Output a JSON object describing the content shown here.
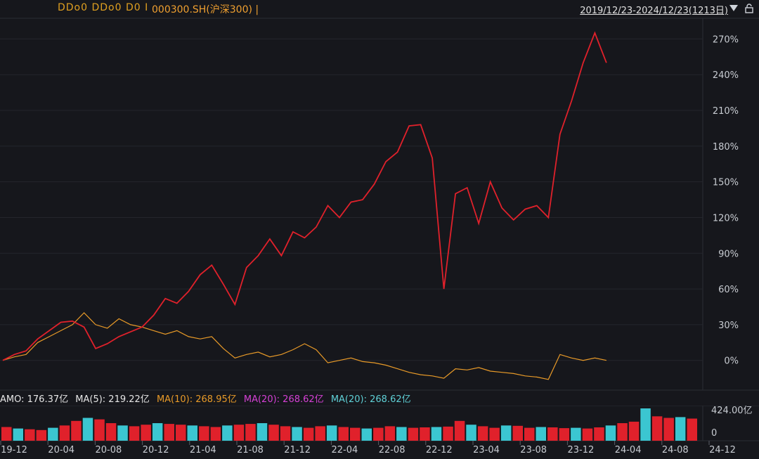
{
  "header": {
    "title_masked": "DDo0 DDo0 D0 I",
    "title_code": "000300.SH(沪深300) |",
    "date_range": "2019/12/23-2024/12/23(1213日)"
  },
  "volume_indicators": {
    "amo": "AMO: 176.37亿",
    "ma5": "MA(5): 219.22亿",
    "ma10": "MA(10): 268.95亿",
    "ma20a": "MA(20): 268.62亿",
    "ma20b": "MA(20): 268.62亿"
  },
  "colors": {
    "background": "#16171c",
    "up": "#e0212b",
    "down": "#3bc6d1",
    "index_line": "#e89a28",
    "grid": "#2a2c33",
    "axis_text": "#c8ccd2"
  },
  "chart_data": [
    {
      "type": "line",
      "subtype": "candlestick-percent",
      "ylabels": [
        "270%",
        "240%",
        "210%",
        "180%",
        "150%",
        "120%",
        "90%",
        "60%",
        "30%",
        "0%"
      ],
      "yticks": [
        270,
        240,
        210,
        180,
        150,
        120,
        90,
        60,
        30,
        0
      ],
      "ylim": [
        -22,
        285
      ],
      "xlim": [
        0,
        60
      ],
      "series": [
        {
          "name": "",
          "color": "#e0212b",
          "points": [
            [
              0,
              0
            ],
            [
              1,
              5
            ],
            [
              2,
              8
            ],
            [
              3,
              18
            ],
            [
              4,
              25
            ],
            [
              5,
              32
            ],
            [
              6,
              33
            ],
            [
              7,
              28
            ],
            [
              8,
              10
            ],
            [
              9,
              14
            ],
            [
              10,
              20
            ],
            [
              11,
              24
            ],
            [
              12,
              28
            ],
            [
              13,
              38
            ],
            [
              14,
              52
            ],
            [
              15,
              48
            ],
            [
              16,
              58
            ],
            [
              17,
              72
            ],
            [
              18,
              80
            ],
            [
              19,
              64
            ],
            [
              20,
              47
            ],
            [
              21,
              78
            ],
            [
              22,
              88
            ],
            [
              23,
              102
            ],
            [
              24,
              88
            ],
            [
              25,
              108
            ],
            [
              26,
              103
            ],
            [
              27,
              112
            ],
            [
              28,
              130
            ],
            [
              29,
              120
            ],
            [
              30,
              133
            ],
            [
              31,
              135
            ],
            [
              32,
              148
            ],
            [
              33,
              167
            ],
            [
              34,
              175
            ],
            [
              35,
              197
            ],
            [
              36,
              198
            ],
            [
              37,
              170
            ],
            [
              38,
              60
            ],
            [
              39,
              140
            ],
            [
              40,
              145
            ],
            [
              41,
              115
            ],
            [
              42,
              150
            ],
            [
              43,
              128
            ],
            [
              44,
              118
            ],
            [
              45,
              127
            ],
            [
              46,
              130
            ],
            [
              47,
              120
            ],
            [
              48,
              190
            ],
            [
              49,
              218
            ],
            [
              50,
              250
            ],
            [
              51,
              275
            ],
            [
              52,
              250
            ]
          ]
        },
        {
          "name": "000300.SH(沪深300)",
          "color": "#e89a28",
          "points": [
            [
              0,
              0
            ],
            [
              1,
              3
            ],
            [
              2,
              5
            ],
            [
              3,
              15
            ],
            [
              4,
              20
            ],
            [
              5,
              25
            ],
            [
              6,
              30
            ],
            [
              7,
              40
            ],
            [
              8,
              30
            ],
            [
              9,
              27
            ],
            [
              10,
              35
            ],
            [
              11,
              30
            ],
            [
              12,
              28
            ],
            [
              13,
              25
            ],
            [
              14,
              22
            ],
            [
              15,
              25
            ],
            [
              16,
              20
            ],
            [
              17,
              18
            ],
            [
              18,
              20
            ],
            [
              19,
              10
            ],
            [
              20,
              2
            ],
            [
              21,
              5
            ],
            [
              22,
              7
            ],
            [
              23,
              3
            ],
            [
              24,
              5
            ],
            [
              25,
              9
            ],
            [
              26,
              14
            ],
            [
              27,
              9
            ],
            [
              28,
              -2
            ],
            [
              29,
              0
            ],
            [
              30,
              2
            ],
            [
              31,
              -1
            ],
            [
              32,
              -2
            ],
            [
              33,
              -4
            ],
            [
              34,
              -7
            ],
            [
              35,
              -10
            ],
            [
              36,
              -12
            ],
            [
              37,
              -13
            ],
            [
              38,
              -15
            ],
            [
              39,
              -7
            ],
            [
              40,
              -8
            ],
            [
              41,
              -6
            ],
            [
              42,
              -9
            ],
            [
              43,
              -10
            ],
            [
              44,
              -11
            ],
            [
              45,
              -13
            ],
            [
              46,
              -14
            ],
            [
              47,
              -16
            ],
            [
              48,
              5
            ],
            [
              49,
              2
            ],
            [
              50,
              0
            ],
            [
              51,
              2
            ],
            [
              52,
              0
            ]
          ]
        }
      ]
    },
    {
      "type": "bar",
      "subtype": "volume",
      "ylabels": [
        "424.00亿",
        "0"
      ],
      "ylim": [
        0,
        424
      ],
      "values": [
        180,
        160,
        150,
        140,
        170,
        200,
        260,
        300,
        280,
        230,
        200,
        190,
        210,
        230,
        220,
        210,
        200,
        190,
        180,
        200,
        210,
        220,
        230,
        210,
        190,
        180,
        170,
        190,
        200,
        180,
        170,
        160,
        170,
        190,
        180,
        170,
        175,
        180,
        185,
        260,
        210,
        190,
        170,
        200,
        195,
        170,
        180,
        175,
        165,
        170,
        160,
        175,
        200,
        230,
        250,
        430,
        320,
        300,
        310,
        290
      ],
      "xticks": [
        "19-12",
        "20-04",
        "20-08",
        "20-12",
        "21-04",
        "21-08",
        "21-12",
        "22-04",
        "22-08",
        "22-12",
        "23-04",
        "23-08",
        "23-12",
        "24-04",
        "24-08",
        "24-12"
      ]
    }
  ]
}
